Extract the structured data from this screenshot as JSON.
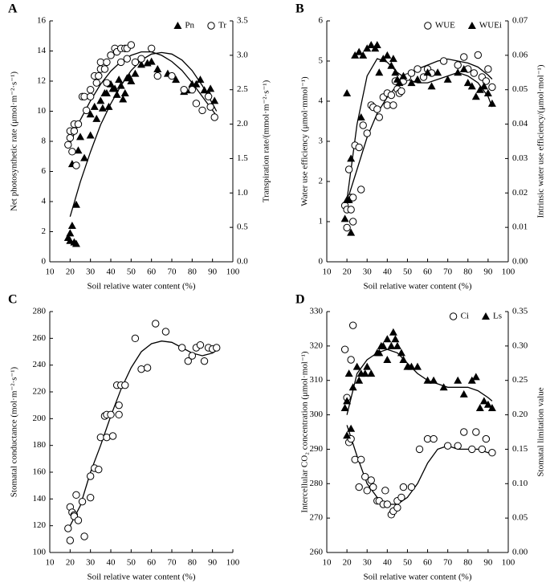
{
  "chart_data": [
    {
      "type": "scatter",
      "panel": "A",
      "xlabel": "Soil relative water content (%)",
      "ylabel": "Net photosynthetic rate (μmol·m⁻²·s⁻¹)",
      "y2label": "Transpiration rate/(mmol·m⁻²·s⁻¹)",
      "xlim": [
        10,
        100
      ],
      "xticks": [
        10,
        20,
        30,
        40,
        50,
        60,
        70,
        80,
        90,
        100
      ],
      "ylim": [
        0,
        16
      ],
      "yticks": [
        0,
        2,
        4,
        6,
        8,
        10,
        12,
        14,
        16
      ],
      "y2lim": [
        0,
        3.5
      ],
      "y2ticks": [
        {
          "value": 0,
          "label": "0.0"
        },
        {
          "value": 0.5,
          "label": "0.5"
        },
        {
          "value": 1,
          "label": "1.0"
        },
        {
          "value": 1.5,
          "label": "1.5"
        },
        {
          "value": 2,
          "label": "2.0"
        },
        {
          "value": 2.5,
          "label": "2.5"
        },
        {
          "value": 3,
          "label": "3.0"
        },
        {
          "value": 3.5,
          "label": "3.5"
        }
      ],
      "legend": "top-right",
      "series": [
        {
          "name": "Pn",
          "marker": "triangle",
          "color": "#000",
          "axis": "y",
          "x": [
            19,
            20,
            20,
            21,
            22,
            23,
            23,
            21,
            24,
            25,
            27,
            30,
            30,
            32,
            33,
            35,
            36,
            37,
            38,
            39,
            40,
            41,
            42,
            43,
            44,
            45,
            46,
            47,
            48,
            49,
            50,
            52,
            55,
            58,
            60,
            63,
            68,
            72,
            76,
            79,
            80,
            82,
            84,
            86,
            88,
            89,
            91
          ],
          "values": [
            1.6,
            1.4,
            1.9,
            2.4,
            1.3,
            1.2,
            3.8,
            6.5,
            7.4,
            8.3,
            6.9,
            8.4,
            9.8,
            10.3,
            9.5,
            10.7,
            10.2,
            11.2,
            11.2,
            10.3,
            11.8,
            11.5,
            11.5,
            11.1,
            12.1,
            11.7,
            10.8,
            11.2,
            12.2,
            12.3,
            12.0,
            12.5,
            13.1,
            13.2,
            13.3,
            12.8,
            12.5,
            12.1,
            11.3,
            11.4,
            11.8,
            11.8,
            12.1,
            11.4,
            11.2,
            11.5,
            10.7
          ]
        },
        {
          "name": "Tr",
          "marker": "circle",
          "color": "#000",
          "axis": "y2",
          "x": [
            19,
            20,
            20,
            21,
            22,
            23,
            22,
            24,
            26,
            27,
            28,
            30,
            30,
            32,
            33,
            34,
            35,
            35,
            37,
            38,
            38,
            40,
            40,
            42,
            43,
            45,
            45,
            47,
            48,
            48,
            50,
            52,
            55,
            60,
            63,
            70,
            76,
            80,
            82,
            85,
            88,
            89,
            91
          ],
          "values": [
            1.7,
            1.9,
            1.8,
            1.6,
            1.9,
            1.4,
            2.0,
            2.0,
            2.4,
            2.4,
            2.2,
            2.5,
            2.4,
            2.7,
            2.6,
            2.7,
            2.8,
            2.9,
            2.8,
            2.9,
            2.6,
            3.0,
            3.0,
            3.1,
            3.05,
            3.1,
            2.9,
            3.1,
            3.1,
            2.95,
            3.15,
            2.9,
            2.95,
            3.1,
            2.7,
            2.7,
            2.5,
            2.5,
            2.3,
            2.2,
            2.4,
            2.25,
            2.1
          ]
        }
      ],
      "fits": [
        {
          "axis": "y",
          "x": [
            20,
            25,
            30,
            35,
            40,
            45,
            50,
            55,
            60,
            65,
            70,
            75,
            80,
            85,
            90,
            92
          ],
          "values": [
            3.0,
            5.3,
            7.3,
            9.1,
            10.5,
            11.7,
            12.7,
            13.4,
            13.8,
            13.9,
            13.8,
            13.4,
            12.7,
            11.7,
            10.5,
            10.0
          ]
        },
        {
          "axis": "y2",
          "x": [
            20,
            25,
            30,
            35,
            40,
            45,
            50,
            55,
            60,
            65,
            70,
            75,
            80,
            85,
            90,
            92
          ],
          "values": [
            1.72,
            2.06,
            2.34,
            2.58,
            2.77,
            2.91,
            3.0,
            3.05,
            3.05,
            3.0,
            2.91,
            2.78,
            2.6,
            2.4,
            2.2,
            2.12
          ]
        }
      ]
    },
    {
      "type": "scatter",
      "panel": "B",
      "xlabel": "Soil relative water content (%)",
      "ylabel": "Water use efficiency (μmol·mmol⁻¹)",
      "y2label": "Intrinsic water use efficiency/(μmol·mol⁻¹)",
      "xlim": [
        10,
        100
      ],
      "xticks": [
        10,
        20,
        30,
        40,
        50,
        60,
        70,
        80,
        90,
        100
      ],
      "ylim": [
        0,
        6
      ],
      "yticks": [
        0,
        1,
        2,
        3,
        4,
        5,
        6
      ],
      "y2lim": [
        0,
        0.07
      ],
      "y2ticks": [
        {
          "value": 0,
          "label": "0.00"
        },
        {
          "value": 0.01,
          "label": "0.01"
        },
        {
          "value": 0.02,
          "label": "0.02"
        },
        {
          "value": 0.03,
          "label": "0.03"
        },
        {
          "value": 0.04,
          "label": "0.04"
        },
        {
          "value": 0.05,
          "label": "0.05"
        },
        {
          "value": 0.06,
          "label": "0.06"
        },
        {
          "value": 0.07,
          "label": "0.07"
        }
      ],
      "legend": "top-right",
      "series": [
        {
          "name": "WUE",
          "marker": "circle",
          "color": "#000",
          "axis": "y",
          "x": [
            19,
            20,
            20,
            21,
            22,
            22,
            23,
            23,
            24,
            26,
            27,
            28,
            30,
            32,
            33,
            35,
            36,
            38,
            40,
            40,
            42,
            43,
            44,
            45,
            46,
            47,
            48,
            50,
            52,
            55,
            58,
            60,
            62,
            68,
            75,
            78,
            80,
            83,
            85,
            87,
            89,
            90,
            92
          ],
          "values": [
            1.4,
            1.3,
            0.85,
            2.3,
            1.6,
            1.3,
            1.0,
            1.6,
            2.9,
            2.85,
            1.8,
            3.4,
            3.2,
            3.9,
            3.85,
            3.8,
            3.6,
            4.1,
            4.2,
            3.9,
            4.15,
            3.9,
            4.5,
            4.3,
            4.2,
            4.25,
            4.5,
            4.6,
            4.7,
            4.8,
            4.6,
            4.8,
            4.7,
            5.0,
            4.9,
            5.1,
            4.8,
            4.7,
            5.15,
            4.6,
            4.5,
            4.8,
            4.35
          ]
        },
        {
          "name": "WUEi",
          "marker": "triangle",
          "color": "#000",
          "axis": "y2",
          "x": [
            19,
            20,
            20,
            21,
            22,
            22,
            24,
            26,
            27,
            28,
            30,
            32,
            34,
            35,
            36,
            38,
            40,
            42,
            43,
            44,
            45,
            46,
            48,
            52,
            55,
            60,
            62,
            65,
            70,
            75,
            78,
            80,
            82,
            84,
            86,
            88,
            90,
            92
          ],
          "values": [
            0.0125,
            0.018,
            0.049,
            0.018,
            0.0085,
            0.03,
            0.06,
            0.061,
            0.042,
            0.06,
            0.062,
            0.063,
            0.062,
            0.063,
            0.055,
            0.059,
            0.06,
            0.057,
            0.059,
            0.055,
            0.053,
            0.052,
            0.054,
            0.052,
            0.053,
            0.055,
            0.051,
            0.055,
            0.053,
            0.055,
            0.056,
            0.052,
            0.051,
            0.048,
            0.05,
            0.051,
            0.049,
            0.046
          ]
        }
      ],
      "fits": [
        {
          "axis": "y",
          "x": [
            20,
            25,
            30,
            35,
            40,
            45,
            50,
            55,
            60,
            65,
            70,
            75,
            80,
            85,
            90,
            92
          ],
          "values": [
            1.5,
            2.3,
            3.1,
            3.7,
            4.1,
            4.4,
            4.6,
            4.8,
            4.9,
            5.0,
            5.05,
            5.0,
            4.95,
            4.85,
            4.65,
            4.55
          ]
        },
        {
          "axis": "y2",
          "x": [
            20,
            25,
            30,
            35,
            40,
            45,
            50,
            55,
            60,
            65,
            70,
            75,
            80,
            85,
            90,
            92
          ],
          "values": [
            0.018,
            0.04,
            0.054,
            0.059,
            0.058,
            0.055,
            0.053,
            0.052,
            0.052,
            0.053,
            0.054,
            0.055,
            0.054,
            0.052,
            0.048,
            0.045
          ]
        }
      ]
    },
    {
      "type": "scatter",
      "panel": "C",
      "xlabel": "Soil relative water content (%)",
      "ylabel": "Stomatal conductance (mol·m⁻²·s⁻¹)",
      "xlim": [
        10,
        100
      ],
      "xticks": [
        10,
        20,
        30,
        40,
        50,
        60,
        70,
        80,
        90,
        100
      ],
      "ylim": [
        100,
        280
      ],
      "yticks": [
        100,
        120,
        140,
        160,
        180,
        200,
        220,
        240,
        260,
        280
      ],
      "series": [
        {
          "marker": "circle",
          "color": "#000",
          "axis": "y",
          "x": [
            19,
            20,
            20,
            21,
            22,
            22,
            23,
            24,
            26,
            27,
            30,
            30,
            32,
            34,
            35,
            37,
            38,
            38,
            40,
            41,
            43,
            44,
            44,
            45,
            47,
            52,
            55,
            58,
            62,
            67,
            75,
            78,
            80,
            82,
            84,
            86,
            88,
            90,
            92
          ],
          "values": [
            118,
            109,
            134,
            130,
            128,
            127,
            143,
            124,
            138,
            112,
            157,
            141,
            163,
            162,
            186,
            202,
            203,
            186,
            203,
            187,
            225,
            210,
            203,
            225,
            225,
            260,
            237,
            238,
            271,
            265,
            253,
            243,
            247,
            253,
            255,
            243,
            253,
            252,
            253
          ]
        }
      ],
      "fits": [
        {
          "axis": "y",
          "x": [
            20,
            25,
            30,
            35,
            40,
            45,
            50,
            55,
            60,
            65,
            70,
            75,
            80,
            85,
            90,
            92
          ],
          "values": [
            120,
            135,
            160,
            180,
            202,
            222,
            238,
            250,
            256,
            258,
            257,
            253,
            249,
            247,
            249,
            251
          ]
        }
      ]
    },
    {
      "type": "scatter",
      "panel": "D",
      "xlabel": "Soil relative water content (%)",
      "ylabel": "Intercellular CO₂ concentration (μmol·mol⁻¹)",
      "y2label": "Stomatal limitation value",
      "xlim": [
        10,
        100
      ],
      "xticks": [
        10,
        20,
        30,
        40,
        50,
        60,
        70,
        80,
        90,
        100
      ],
      "ylim": [
        260,
        330
      ],
      "yticks": [
        260,
        270,
        280,
        290,
        300,
        310,
        320,
        330
      ],
      "y2lim": [
        0,
        0.35
      ],
      "y2ticks": [
        {
          "value": 0,
          "label": "0.00"
        },
        {
          "value": 0.05,
          "label": "0.05"
        },
        {
          "value": 0.1,
          "label": "0.10"
        },
        {
          "value": 0.15,
          "label": "0.15"
        },
        {
          "value": 0.2,
          "label": "0.20"
        },
        {
          "value": 0.25,
          "label": "0.25"
        },
        {
          "value": 0.3,
          "label": "0.30"
        },
        {
          "value": 0.35,
          "label": "0.35"
        }
      ],
      "legend": "top-right",
      "series": [
        {
          "name": "Ci",
          "marker": "circle",
          "color": "#000",
          "axis": "y",
          "x": [
            19,
            20,
            21,
            22,
            23,
            22,
            24,
            26,
            27,
            29,
            30,
            32,
            33,
            35,
            36,
            38,
            39,
            40,
            42,
            43,
            45,
            45,
            47,
            48,
            52,
            56,
            60,
            63,
            70,
            75,
            78,
            82,
            84,
            87,
            89,
            92
          ],
          "values": [
            319,
            305,
            292,
            316,
            326,
            293,
            287,
            279,
            287,
            282,
            278,
            281,
            279,
            275,
            275,
            274,
            278,
            274,
            271,
            272,
            275,
            273,
            276,
            279,
            279,
            290,
            293,
            293,
            291,
            291,
            295,
            290,
            295,
            290,
            293,
            289
          ]
        },
        {
          "name": "Ls",
          "marker": "triangle",
          "color": "#000",
          "axis": "y2",
          "x": [
            19,
            20,
            20,
            21,
            22,
            23,
            25,
            26,
            27,
            29,
            30,
            32,
            35,
            36,
            37,
            38,
            40,
            40,
            42,
            43,
            44,
            45,
            47,
            48,
            50,
            52,
            55,
            60,
            63,
            68,
            75,
            78,
            82,
            84,
            86,
            88,
            90,
            92
          ],
          "values": [
            0.21,
            0.17,
            0.22,
            0.26,
            0.18,
            0.24,
            0.27,
            0.25,
            0.26,
            0.26,
            0.27,
            0.26,
            0.29,
            0.29,
            0.3,
            0.3,
            0.31,
            0.28,
            0.3,
            0.32,
            0.31,
            0.3,
            0.29,
            0.28,
            0.27,
            0.27,
            0.27,
            0.25,
            0.25,
            0.24,
            0.25,
            0.23,
            0.25,
            0.255,
            0.21,
            0.22,
            0.215,
            0.21
          ]
        }
      ],
      "fits": [
        {
          "axis": "y",
          "x": [
            20,
            25,
            30,
            35,
            40,
            45,
            50,
            55,
            60,
            65,
            70,
            75,
            80,
            85,
            90,
            92
          ],
          "values": [
            297,
            288,
            280,
            276,
            274,
            274,
            276,
            280,
            286,
            290,
            291,
            290,
            290,
            290,
            289,
            289
          ]
        },
        {
          "axis": "y2",
          "x": [
            20,
            25,
            30,
            35,
            40,
            45,
            50,
            55,
            60,
            65,
            70,
            75,
            80,
            85,
            90,
            92
          ],
          "values": [
            0.2,
            0.26,
            0.28,
            0.29,
            0.295,
            0.29,
            0.275,
            0.26,
            0.25,
            0.245,
            0.24,
            0.24,
            0.24,
            0.235,
            0.225,
            0.22
          ]
        }
      ]
    }
  ]
}
